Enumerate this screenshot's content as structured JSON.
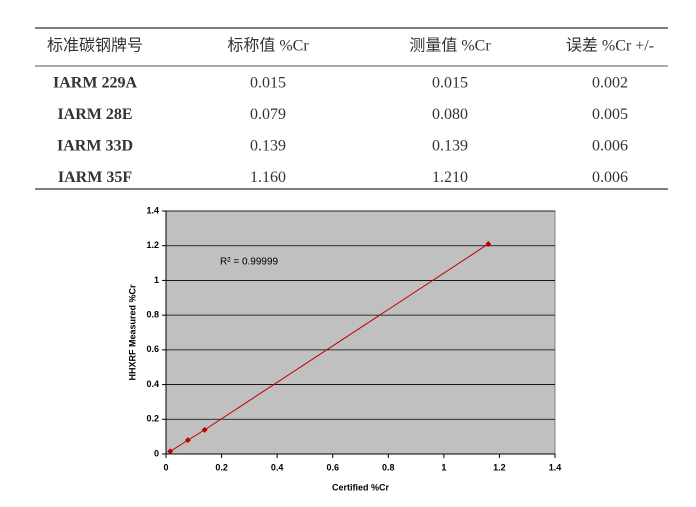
{
  "table": {
    "header": [
      "标准碳钢牌号",
      "标称值 %Cr",
      "测量值 %Cr",
      "误差 %Cr +/-"
    ],
    "rows": [
      [
        "IARM 229A",
        "0.015",
        "0.015",
        "0.002"
      ],
      [
        "IARM 28E",
        "0.079",
        "0.080",
        "0.005"
      ],
      [
        "IARM 33D",
        "0.139",
        "0.139",
        "0.006"
      ],
      [
        "IARM 35F",
        "1.160",
        "1.210",
        "0.006"
      ]
    ]
  },
  "chart_data": {
    "type": "line",
    "x_label": "Certified %Cr",
    "y_label": "HHXRF Measured %Cr",
    "annotation": "R² = 0.99999",
    "x": [
      0.015,
      0.079,
      0.139,
      1.16
    ],
    "series": [
      {
        "color": "#c00000",
        "values": [
          0.015,
          0.08,
          0.139,
          1.21
        ]
      }
    ],
    "xlim": [
      0,
      1.4
    ],
    "ylim": [
      0,
      1.4
    ],
    "xticks": [
      0,
      0.2,
      0.4,
      0.6,
      0.8,
      1,
      1.2,
      1.4
    ],
    "yticks": [
      0,
      0.2,
      0.4,
      0.6,
      0.8,
      1,
      1.2,
      1.4
    ],
    "grid": true,
    "background": "#c0c0c0"
  }
}
